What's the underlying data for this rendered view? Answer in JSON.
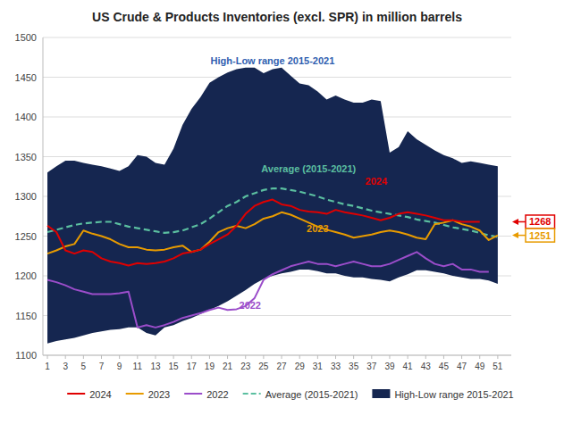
{
  "chart_data": {
    "type": "line",
    "title": "US Crude & Products Inventories (excl. SPR) in million barrels",
    "x": [
      1,
      2,
      3,
      4,
      5,
      6,
      7,
      8,
      9,
      10,
      11,
      12,
      13,
      14,
      15,
      16,
      17,
      18,
      19,
      20,
      21,
      22,
      23,
      24,
      25,
      26,
      27,
      28,
      29,
      30,
      31,
      32,
      33,
      34,
      35,
      36,
      37,
      38,
      39,
      40,
      41,
      42,
      43,
      44,
      45,
      46,
      47,
      48,
      49,
      50,
      51
    ],
    "xlim": [
      0.5,
      52.5
    ],
    "xticks": [
      1,
      3,
      5,
      7,
      9,
      11,
      13,
      15,
      17,
      19,
      21,
      23,
      25,
      27,
      29,
      31,
      33,
      35,
      37,
      39,
      41,
      43,
      45,
      47,
      49,
      51
    ],
    "ylim": [
      1100,
      1500
    ],
    "yticks": [
      1100,
      1150,
      1200,
      1250,
      1300,
      1350,
      1400,
      1450,
      1500
    ],
    "grid": true,
    "legend": "bottom",
    "series": [
      {
        "name": "2024",
        "type": "line",
        "color": "#e00000",
        "values": [
          1263,
          1255,
          1232,
          1228,
          1232,
          1230,
          1222,
          1218,
          1216,
          1213,
          1216,
          1215,
          1216,
          1218,
          1222,
          1228,
          1230,
          1233,
          1240,
          1246,
          1252,
          1263,
          1278,
          1288,
          1293,
          1296,
          1290,
          1288,
          1283,
          1281,
          1280,
          1278,
          1283,
          1280,
          1278,
          1276,
          1273,
          1270,
          1273,
          1278,
          1280,
          1278,
          1276,
          1273,
          1270,
          1270,
          1268,
          1268,
          1268,
          null,
          null
        ]
      },
      {
        "name": "2023",
        "type": "line",
        "color": "#e89b00",
        "values": [
          1228,
          1232,
          1237,
          1240,
          1257,
          1253,
          1250,
          1246,
          1240,
          1236,
          1236,
          1233,
          1232,
          1233,
          1236,
          1238,
          1230,
          1233,
          1243,
          1255,
          1260,
          1263,
          1260,
          1265,
          1272,
          1275,
          1280,
          1277,
          1272,
          1267,
          1262,
          1258,
          1255,
          1252,
          1248,
          1250,
          1252,
          1255,
          1257,
          1255,
          1252,
          1248,
          1246,
          1265,
          1267,
          1270,
          1265,
          1262,
          1257,
          1245,
          1251
        ]
      },
      {
        "name": "2022",
        "type": "line",
        "color": "#9b4dca",
        "values": [
          1195,
          1192,
          1188,
          1183,
          1180,
          1177,
          1177,
          1177,
          1178,
          1180,
          1135,
          1138,
          1135,
          1138,
          1142,
          1147,
          1150,
          1153,
          1157,
          1160,
          1157,
          1158,
          1162,
          1172,
          1195,
          1202,
          1207,
          1212,
          1215,
          1218,
          1215,
          1215,
          1212,
          1215,
          1218,
          1215,
          1212,
          1212,
          1215,
          1220,
          1225,
          1230,
          1222,
          1215,
          1212,
          1215,
          1208,
          1208,
          1205,
          1205,
          null
        ]
      },
      {
        "name": "Average (2015-2021)",
        "type": "line",
        "line_style": "dashed",
        "color": "#5bbfa0",
        "values": [
          1255,
          1258,
          1261,
          1264,
          1266,
          1267,
          1268,
          1268,
          1265,
          1262,
          1260,
          1258,
          1256,
          1254,
          1255,
          1257,
          1261,
          1265,
          1272,
          1280,
          1288,
          1293,
          1300,
          1304,
          1308,
          1310,
          1310,
          1308,
          1306,
          1303,
          1300,
          1296,
          1293,
          1290,
          1288,
          1285,
          1282,
          1280,
          1278,
          1276,
          1274,
          1271,
          1269,
          1267,
          1264,
          1261,
          1259,
          1257,
          1254,
          1251,
          1249
        ]
      },
      {
        "name": "High-Low range 2015-2021",
        "type": "area",
        "color": "#152650",
        "values": [
          1330,
          1338,
          1345,
          1345,
          1342,
          1340,
          1338,
          1335,
          1332,
          1338,
          1352,
          1350,
          1342,
          1340,
          1360,
          1390,
          1410,
          1425,
          1443,
          1450,
          1456,
          1460,
          1462,
          1462,
          1455,
          1460,
          1462,
          1452,
          1442,
          1440,
          1432,
          1422,
          1427,
          1422,
          1418,
          1418,
          1422,
          1420,
          1355,
          1362,
          1382,
          1372,
          1365,
          1358,
          1352,
          1348,
          1342,
          1344,
          1342,
          1340,
          1338
        ],
        "low": [
          1115,
          1118,
          1120,
          1122,
          1125,
          1128,
          1130,
          1132,
          1133,
          1135,
          1135,
          1128,
          1125,
          1135,
          1138,
          1143,
          1147,
          1152,
          1157,
          1162,
          1168,
          1175,
          1182,
          1190,
          1196,
          1200,
          1203,
          1205,
          1208,
          1208,
          1206,
          1203,
          1203,
          1200,
          1198,
          1198,
          1196,
          1195,
          1193,
          1198,
          1202,
          1207,
          1207,
          1205,
          1203,
          1200,
          1198,
          1196,
          1196,
          1194,
          1190
        ]
      }
    ],
    "annotations": [
      {
        "text": "High-Low range 2015-2021",
        "x": 26,
        "y": 1466,
        "color": "#3060b0"
      },
      {
        "text": "Average (2015-2021)",
        "x": 30,
        "y": 1330,
        "color": "#5bbfa0"
      },
      {
        "text": "2024",
        "x": 37.5,
        "y": 1315,
        "color": "#e00000"
      },
      {
        "text": "2023",
        "x": 31,
        "y": 1255,
        "color": "#e89b00"
      },
      {
        "text": "2022",
        "x": 23.5,
        "y": 1158,
        "color": "#9b4dca"
      },
      {
        "text": "1268",
        "y": 1268,
        "color": "#e00000"
      },
      {
        "text": "1251",
        "y": 1251,
        "color": "#e89b00"
      }
    ]
  }
}
